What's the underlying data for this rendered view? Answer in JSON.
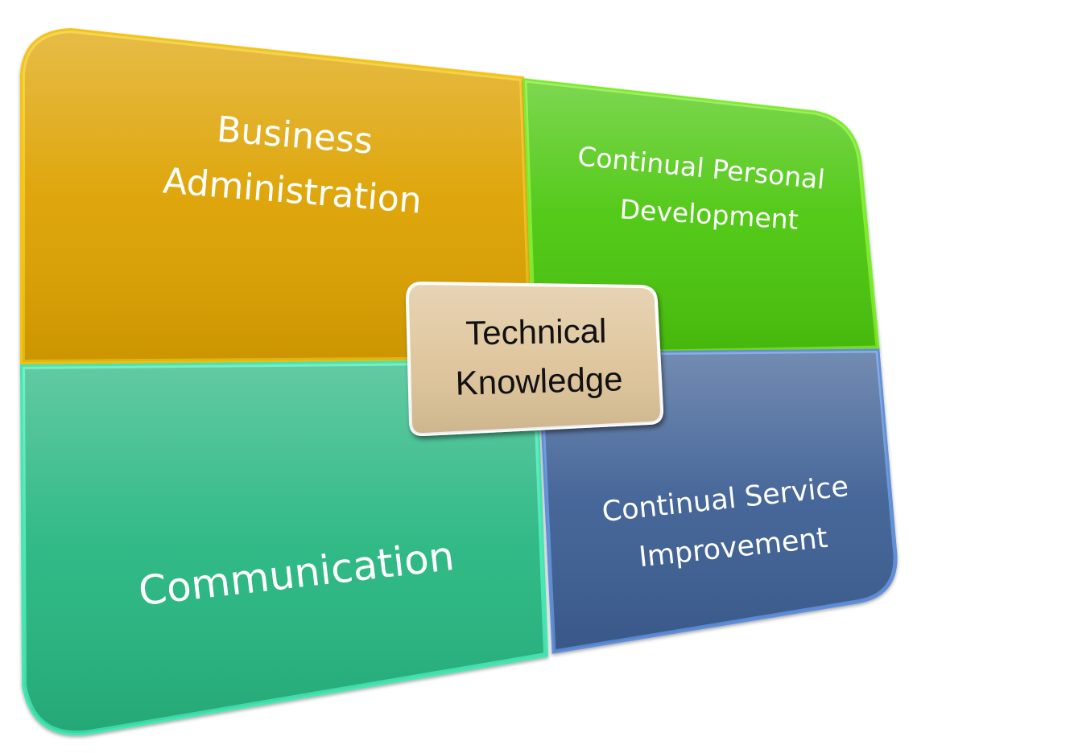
{
  "diagram": {
    "quadrants": {
      "top_left": {
        "lines": [
          "Business",
          "Administration"
        ],
        "color": "#DDA200"
      },
      "top_right": {
        "lines": [
          "Continual Personal",
          "Development"
        ],
        "color": "#4CC711"
      },
      "bottom_left": {
        "lines": [
          "Communication"
        ],
        "color": "#28B680"
      },
      "bottom_right": {
        "lines": [
          "Continual Service",
          "Improvement"
        ],
        "color": "#3C5F94"
      }
    },
    "center": {
      "lines": [
        "Technical",
        "Knowledge"
      ],
      "color": "#DEC49A"
    }
  }
}
